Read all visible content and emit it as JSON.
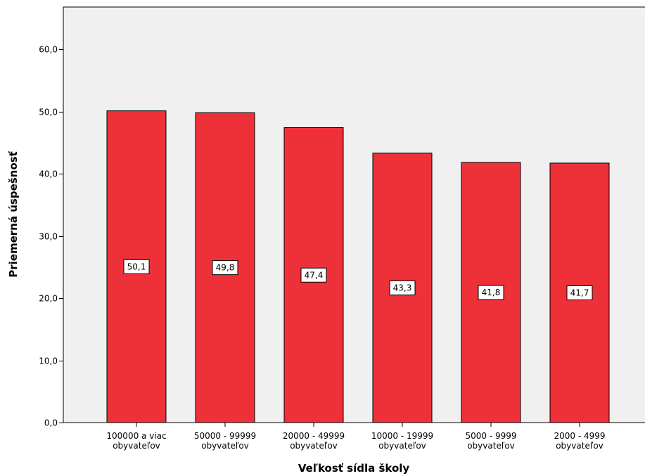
{
  "chart_data": {
    "type": "bar",
    "categories": [
      [
        "100000 a viac",
        "obyvateľov"
      ],
      [
        "50000 - 99999",
        "obyvateľov"
      ],
      [
        "20000 - 49999",
        "obyvateľov"
      ],
      [
        "10000 - 19999",
        "obyvateľov"
      ],
      [
        "5000 - 9999",
        "obyvateľov"
      ],
      [
        "2000 - 4999",
        "obyvateľov"
      ]
    ],
    "values": [
      50.1,
      49.8,
      47.4,
      43.3,
      41.8,
      41.7
    ],
    "data_labels": [
      "50,1",
      "49,8",
      "47,4",
      "43,3",
      "41,8",
      "41,7"
    ],
    "title": "",
    "xlabel": "Veľkosť sídla školy",
    "ylabel": "Priemerná úspešnosť",
    "ylim": [
      0,
      66
    ],
    "yticks": [
      0,
      10,
      20,
      30,
      40,
      50,
      60
    ],
    "ytick_labels": [
      "0,0",
      "10,0",
      "20,0",
      "30,0",
      "40,0",
      "50,0",
      "60,0"
    ],
    "grid": false,
    "legend": "none",
    "colors": {
      "bar_fill": "#EE3138",
      "bar_stroke": "#000000",
      "plot_background": "#F0F0F0",
      "page_background": "#FFFFFF"
    }
  }
}
